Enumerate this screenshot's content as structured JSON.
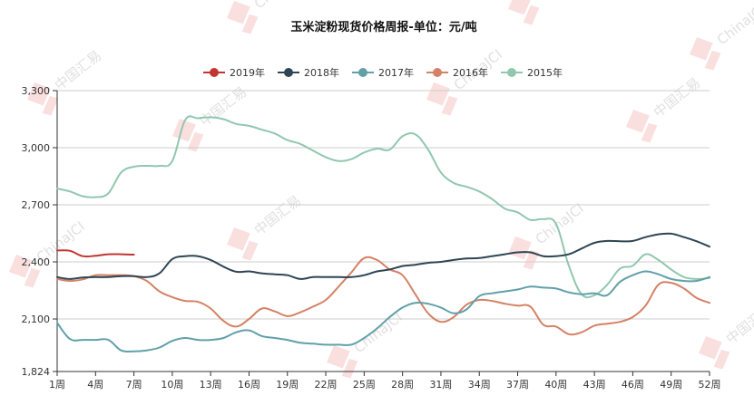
{
  "chart_data": {
    "type": "line",
    "title": "玉米淀粉现货价格周报-单位：元/吨",
    "xlabel": "",
    "ylabel": "",
    "ylim": [
      1824,
      3300
    ],
    "yticks": [
      1824,
      2100,
      2400,
      2700,
      3000,
      3300
    ],
    "ytick_labels": [
      "1,824",
      "2,100",
      "2,400",
      "2,700",
      "3,000",
      "3,300"
    ],
    "xlim": [
      1,
      52
    ],
    "xticks": [
      1,
      4,
      7,
      10,
      13,
      16,
      19,
      22,
      25,
      28,
      31,
      34,
      37,
      40,
      43,
      46,
      49,
      52
    ],
    "xtick_labels": [
      "1周",
      "4周",
      "7周",
      "10周",
      "13周",
      "16周",
      "19周",
      "22周",
      "25周",
      "28周",
      "31周",
      "34周",
      "37周",
      "40周",
      "43周",
      "46周",
      "49周",
      "52周"
    ],
    "grid": "horizontal",
    "legend_position": "top-center",
    "series": [
      {
        "name": "2019年",
        "color": "#c23531",
        "x": [
          1,
          2,
          3,
          4,
          5,
          6,
          7
        ],
        "values": [
          2460,
          2458,
          2430,
          2432,
          2440,
          2440,
          2438
        ]
      },
      {
        "name": "2018年",
        "color": "#2f4554",
        "x": [
          1,
          2,
          3,
          4,
          5,
          6,
          7,
          8,
          9,
          10,
          11,
          12,
          13,
          14,
          15,
          16,
          17,
          18,
          19,
          20,
          21,
          22,
          23,
          24,
          25,
          26,
          27,
          28,
          29,
          30,
          31,
          32,
          33,
          34,
          35,
          36,
          37,
          38,
          39,
          40,
          41,
          42,
          43,
          44,
          45,
          46,
          47,
          48,
          49,
          50,
          51,
          52
        ],
        "values": [
          2320,
          2310,
          2318,
          2320,
          2320,
          2325,
          2325,
          2320,
          2340,
          2415,
          2430,
          2430,
          2410,
          2375,
          2348,
          2350,
          2340,
          2335,
          2330,
          2310,
          2320,
          2320,
          2320,
          2320,
          2330,
          2350,
          2360,
          2378,
          2385,
          2395,
          2400,
          2410,
          2418,
          2420,
          2430,
          2440,
          2450,
          2450,
          2430,
          2430,
          2440,
          2470,
          2500,
          2510,
          2508,
          2510,
          2530,
          2545,
          2548,
          2530,
          2508,
          2480
        ]
      },
      {
        "name": "2017年",
        "color": "#61a0a8",
        "x": [
          1,
          2,
          3,
          4,
          5,
          6,
          7,
          8,
          9,
          10,
          11,
          12,
          13,
          14,
          15,
          16,
          17,
          18,
          19,
          20,
          21,
          22,
          23,
          24,
          25,
          26,
          27,
          28,
          29,
          30,
          31,
          32,
          33,
          34,
          35,
          36,
          37,
          38,
          39,
          40,
          41,
          42,
          43,
          44,
          45,
          46,
          47,
          48,
          49,
          50,
          51,
          52
        ],
        "values": [
          2080,
          1995,
          1990,
          1990,
          1990,
          1935,
          1930,
          1935,
          1950,
          1985,
          2000,
          1990,
          1990,
          2000,
          2030,
          2040,
          2010,
          2000,
          1990,
          1975,
          1970,
          1965,
          1965,
          1965,
          2000,
          2050,
          2110,
          2160,
          2185,
          2180,
          2160,
          2130,
          2150,
          2220,
          2235,
          2245,
          2255,
          2270,
          2265,
          2260,
          2240,
          2230,
          2235,
          2225,
          2295,
          2330,
          2350,
          2335,
          2310,
          2300,
          2300,
          2320
        ]
      },
      {
        "name": "2016年",
        "color": "#d48265",
        "x": [
          1,
          2,
          3,
          4,
          5,
          6,
          7,
          8,
          9,
          10,
          11,
          12,
          13,
          14,
          15,
          16,
          17,
          18,
          19,
          20,
          21,
          22,
          23,
          24,
          25,
          26,
          27,
          28,
          29,
          30,
          31,
          32,
          33,
          34,
          35,
          36,
          37,
          38,
          39,
          40,
          41,
          42,
          43,
          44,
          45,
          46,
          47,
          48,
          49,
          50,
          51,
          52
        ],
        "values": [
          2310,
          2300,
          2308,
          2330,
          2330,
          2330,
          2325,
          2300,
          2245,
          2215,
          2195,
          2190,
          2155,
          2090,
          2060,
          2100,
          2155,
          2140,
          2115,
          2135,
          2165,
          2200,
          2270,
          2345,
          2420,
          2410,
          2360,
          2330,
          2230,
          2130,
          2085,
          2110,
          2175,
          2200,
          2195,
          2180,
          2170,
          2165,
          2070,
          2060,
          2020,
          2030,
          2065,
          2075,
          2085,
          2110,
          2170,
          2280,
          2290,
          2260,
          2210,
          2185
        ]
      },
      {
        "name": "2015年",
        "color": "#91c7ae",
        "x": [
          1,
          2,
          3,
          4,
          5,
          6,
          7,
          8,
          9,
          10,
          11,
          12,
          13,
          14,
          15,
          16,
          17,
          18,
          19,
          20,
          21,
          22,
          23,
          24,
          25,
          26,
          27,
          28,
          29,
          30,
          31,
          32,
          33,
          34,
          35,
          36,
          37,
          38,
          39,
          40,
          41,
          42,
          43,
          44,
          45,
          46,
          47,
          48,
          49,
          50,
          51,
          52
        ],
        "values": [
          2785,
          2770,
          2745,
          2740,
          2760,
          2870,
          2900,
          2905,
          2905,
          2930,
          3145,
          3155,
          3160,
          3150,
          3125,
          3115,
          3095,
          3075,
          3040,
          3020,
          2985,
          2950,
          2930,
          2940,
          2975,
          2995,
          2990,
          3060,
          3070,
          2990,
          2870,
          2815,
          2795,
          2770,
          2730,
          2680,
          2660,
          2620,
          2625,
          2600,
          2380,
          2230,
          2225,
          2280,
          2365,
          2380,
          2440,
          2410,
          2360,
          2320,
          2310,
          2315
        ]
      }
    ]
  },
  "watermark": {
    "text": "中国汇易",
    "latin": "ChinaJCI"
  }
}
